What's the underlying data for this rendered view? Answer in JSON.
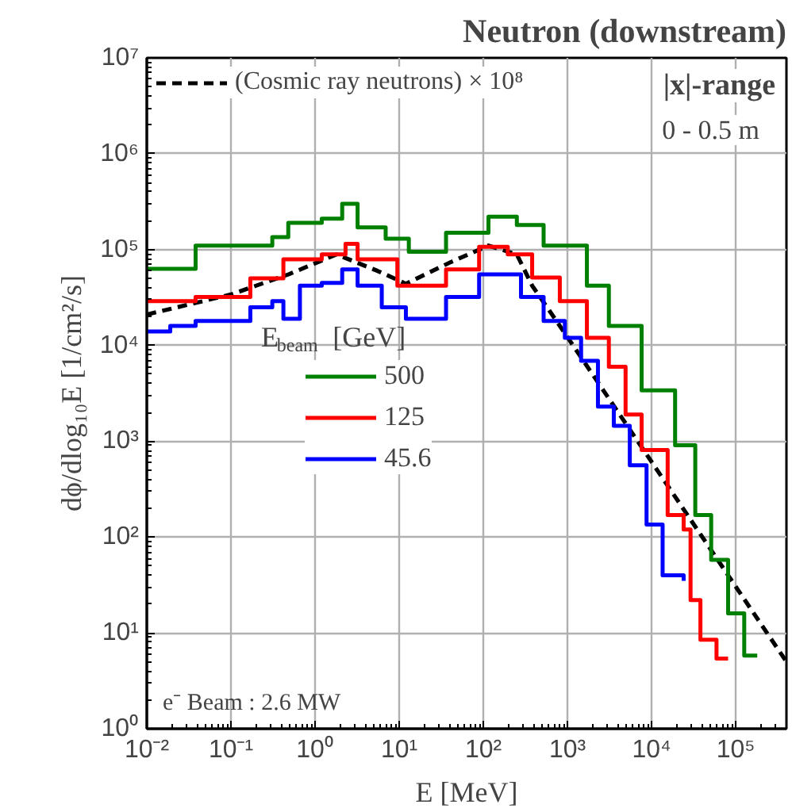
{
  "chart_data": {
    "type": "step",
    "title": "Neutron (downstream)",
    "xlabel": "E [MeV]",
    "ylabel": "dϕ/dlog₁₀E [1/cm²/s]",
    "legend_title": "E$_{beam}$ [GeV]",
    "log": "xy",
    "grid": true,
    "legend": "left",
    "xlim": [
      0.01,
      400000
    ],
    "ylim": [
      1,
      10000000
    ],
    "xticks": [
      {
        "value": 0.01,
        "label": "10⁻²"
      },
      {
        "value": 0.1,
        "label": "10⁻¹"
      },
      {
        "value": 1,
        "label": "10⁰"
      },
      {
        "value": 10,
        "label": "10¹"
      },
      {
        "value": 100,
        "label": "10²"
      },
      {
        "value": 1000,
        "label": "10³"
      },
      {
        "value": 10000,
        "label": "10⁴"
      },
      {
        "value": 100000,
        "label": "10⁵"
      }
    ],
    "yticks": [
      {
        "value": 1,
        "label": "10⁰"
      },
      {
        "value": 10,
        "label": "10¹"
      },
      {
        "value": 100,
        "label": "10²"
      },
      {
        "value": 1000,
        "label": "10³"
      },
      {
        "value": 10000,
        "label": "10⁴"
      },
      {
        "value": 100000,
        "label": "10⁵"
      },
      {
        "value": 1000000,
        "label": "10⁶"
      },
      {
        "value": 10000000,
        "label": "10⁷"
      }
    ],
    "series": [
      {
        "name": "(Cosmic ray neutrons) × 10⁸",
        "type": "line",
        "line_style": "dashed",
        "color": "#000000",
        "x": [
          0.01,
          0.1,
          0.48,
          1.8,
          5.5,
          12,
          41,
          115,
          250,
          380,
          810,
          400000
        ],
        "values": [
          21000,
          34000,
          55000,
          89000,
          60000,
          44000,
          74000,
          110000,
          89000,
          42000,
          16000,
          5
        ]
      },
      {
        "name": "500",
        "color": "#008000",
        "x": [
          0.01,
          0.038,
          0.126,
          0.31,
          0.48,
          1.2,
          2.1,
          3.2,
          6.9,
          13,
          36,
          115,
          250,
          520,
          1700,
          3100,
          7600,
          19000,
          33000,
          51000,
          81000,
          126000,
          180000
        ],
        "values": [
          63000,
          110000,
          110000,
          135000,
          190000,
          210000,
          300000,
          170000,
          130000,
          95000,
          150000,
          220000,
          180000,
          110000,
          42000,
          16000,
          3400,
          910,
          170,
          58,
          16,
          5.8,
          5.8
        ]
      },
      {
        "name": "125",
        "color": "#ff0000",
        "x": [
          0.01,
          0.038,
          0.17,
          0.42,
          1.2,
          2.3,
          3.2,
          9.5,
          36,
          89,
          195,
          380,
          810,
          1700,
          3100,
          4900,
          7600,
          15500,
          24000,
          29000,
          38000,
          59000,
          81000
        ],
        "values": [
          29000,
          32000,
          50000,
          79000,
          89000,
          115000,
          79000,
          42000,
          62000,
          107000,
          89000,
          51000,
          29000,
          12000,
          6000,
          1900,
          810,
          170,
          120,
          22,
          8.5,
          5.4,
          5.4
        ]
      },
      {
        "name": "45.6",
        "color": "#0000ff",
        "x": [
          0.01,
          0.019,
          0.038,
          0.17,
          0.31,
          0.42,
          0.66,
          1.2,
          2.1,
          3.2,
          6.2,
          12,
          36,
          89,
          280,
          520,
          930,
          1450,
          2300,
          3550,
          5500,
          8700,
          13500,
          24000
        ],
        "values": [
          14000,
          16000,
          18000,
          25000,
          29000,
          19000,
          42000,
          45000,
          62000,
          42000,
          25000,
          19000,
          32000,
          55000,
          32000,
          18000,
          12000,
          6900,
          2300,
          1450,
          560,
          135,
          40,
          35
        ]
      }
    ],
    "annotations": [
      "|x|-range",
      "0 - 0.5 m",
      "e⁻ Beam : 2.6 MW"
    ]
  }
}
